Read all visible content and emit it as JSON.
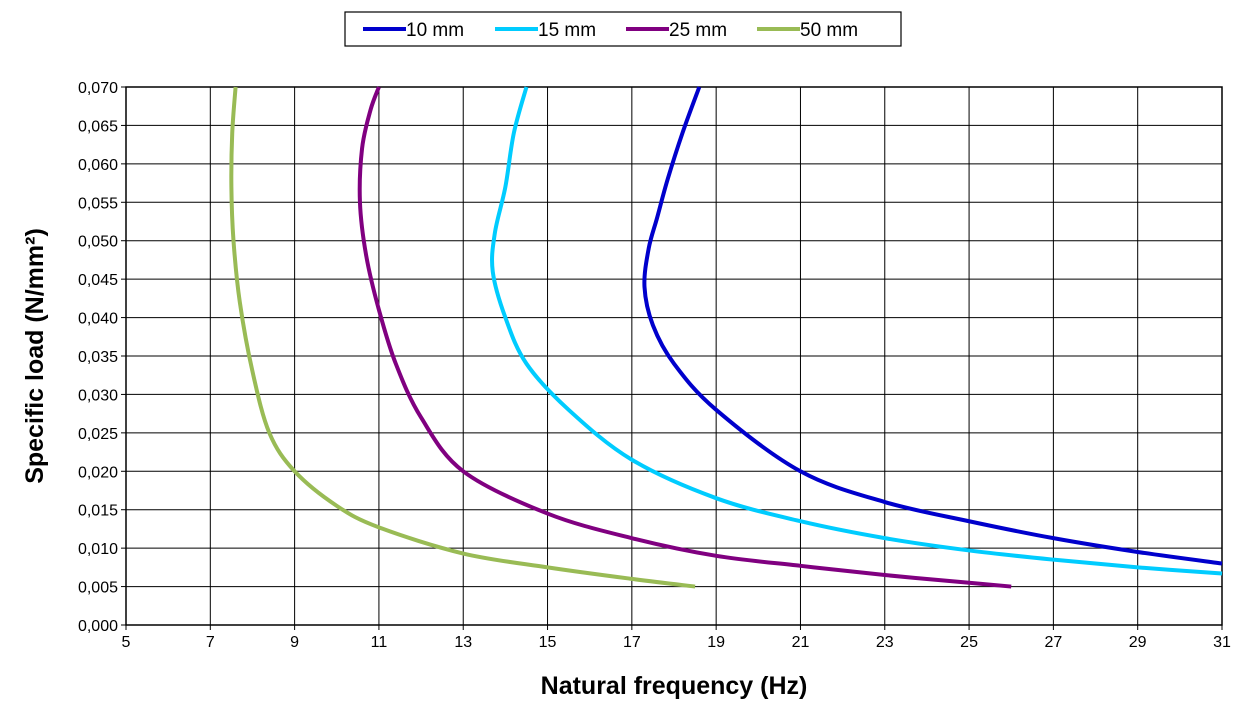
{
  "chart_data": {
    "type": "line",
    "title": "",
    "xlabel": "Natural frequency (Hz)",
    "ylabel": "Specific load (N/mm²)",
    "xlim": [
      5,
      31
    ],
    "ylim": [
      0,
      0.07
    ],
    "x_ticks": [
      "5",
      "7",
      "9",
      "11",
      "13",
      "15",
      "17",
      "19",
      "21",
      "23",
      "25",
      "27",
      "29",
      "31"
    ],
    "y_ticks": [
      "0,000",
      "0,005",
      "0,010",
      "0,015",
      "0,020",
      "0,025",
      "0,030",
      "0,035",
      "0,040",
      "0,045",
      "0,050",
      "0,055",
      "0,060",
      "0,065",
      "0,070"
    ],
    "grid": true,
    "legend_position": "top-center",
    "series": [
      {
        "name": "10 mm",
        "color": "#0000CC",
        "points": [
          [
            31.0,
            0.008
          ],
          [
            29.0,
            0.0095
          ],
          [
            27.0,
            0.0113
          ],
          [
            25.0,
            0.0135
          ],
          [
            23.0,
            0.016
          ],
          [
            21.0,
            0.02
          ],
          [
            19.0,
            0.028
          ],
          [
            18.0,
            0.034
          ],
          [
            17.5,
            0.039
          ],
          [
            17.3,
            0.044
          ],
          [
            17.4,
            0.049
          ],
          [
            17.6,
            0.053
          ],
          [
            17.85,
            0.058
          ],
          [
            18.2,
            0.064
          ],
          [
            18.6,
            0.07
          ]
        ]
      },
      {
        "name": "15 mm",
        "color": "#00CCFF",
        "points": [
          [
            31.0,
            0.0067
          ],
          [
            29.0,
            0.0075
          ],
          [
            27.0,
            0.0085
          ],
          [
            25.0,
            0.0097
          ],
          [
            23.0,
            0.0113
          ],
          [
            21.0,
            0.0135
          ],
          [
            19.0,
            0.0165
          ],
          [
            17.0,
            0.0215
          ],
          [
            15.5,
            0.028
          ],
          [
            14.5,
            0.034
          ],
          [
            14.0,
            0.04
          ],
          [
            13.7,
            0.046
          ],
          [
            13.75,
            0.051
          ],
          [
            14.0,
            0.057
          ],
          [
            14.2,
            0.064
          ],
          [
            14.5,
            0.07
          ]
        ]
      },
      {
        "name": "25 mm",
        "color": "#800080",
        "points": [
          [
            26.0,
            0.005
          ],
          [
            25.0,
            0.0055
          ],
          [
            23.0,
            0.0065
          ],
          [
            21.0,
            0.0077
          ],
          [
            19.0,
            0.009
          ],
          [
            17.0,
            0.0113
          ],
          [
            15.0,
            0.0145
          ],
          [
            13.0,
            0.02
          ],
          [
            12.0,
            0.027
          ],
          [
            11.4,
            0.034
          ],
          [
            11.0,
            0.041
          ],
          [
            10.7,
            0.048
          ],
          [
            10.55,
            0.055
          ],
          [
            10.6,
            0.062
          ],
          [
            10.8,
            0.067
          ],
          [
            11.0,
            0.07
          ]
        ]
      },
      {
        "name": "50 mm",
        "color": "#99BB55",
        "points": [
          [
            18.5,
            0.005
          ],
          [
            17.0,
            0.006
          ],
          [
            15.0,
            0.0075
          ],
          [
            13.0,
            0.0093
          ],
          [
            11.0,
            0.0127
          ],
          [
            10.0,
            0.0155
          ],
          [
            9.0,
            0.02
          ],
          [
            8.4,
            0.025
          ],
          [
            8.0,
            0.033
          ],
          [
            7.7,
            0.042
          ],
          [
            7.55,
            0.05
          ],
          [
            7.5,
            0.057
          ],
          [
            7.52,
            0.064
          ],
          [
            7.6,
            0.07
          ]
        ]
      }
    ]
  }
}
